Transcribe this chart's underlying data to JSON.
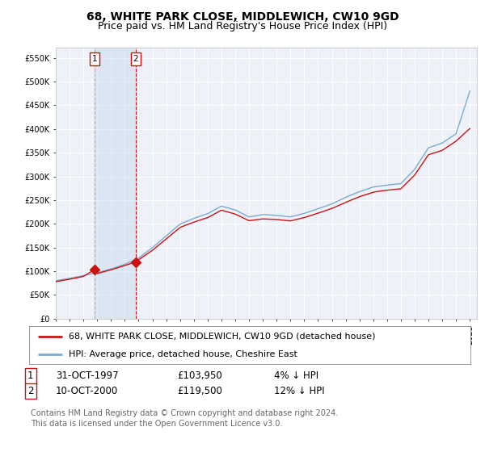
{
  "title": "68, WHITE PARK CLOSE, MIDDLEWICH, CW10 9GD",
  "subtitle": "Price paid vs. HM Land Registry's House Price Index (HPI)",
  "ylim": [
    0,
    572000
  ],
  "yticks": [
    0,
    50000,
    100000,
    150000,
    200000,
    250000,
    300000,
    350000,
    400000,
    450000,
    500000,
    550000
  ],
  "ytick_labels": [
    "£0",
    "£50K",
    "£100K",
    "£150K",
    "£200K",
    "£250K",
    "£300K",
    "£350K",
    "£400K",
    "£450K",
    "£500K",
    "£550K"
  ],
  "background_color": "#ffffff",
  "plot_background": "#eef2f8",
  "grid_color": "#ffffff",
  "red_line_color": "#cc1111",
  "blue_line_color": "#7aaad0",
  "purchase1_x": 1997.83,
  "purchase1_price": 103950,
  "purchase2_x": 2000.78,
  "purchase2_price": 119500,
  "xmin": 1995.0,
  "xmax": 2025.5,
  "legend_label_red": "68, WHITE PARK CLOSE, MIDDLEWICH, CW10 9GD (detached house)",
  "legend_label_blue": "HPI: Average price, detached house, Cheshire East",
  "table_row1": [
    "1",
    "31-OCT-1997",
    "£103,950",
    "4% ↓ HPI"
  ],
  "table_row2": [
    "2",
    "10-OCT-2000",
    "£119,500",
    "12% ↓ HPI"
  ],
  "footnote1": "Contains HM Land Registry data © Crown copyright and database right 2024.",
  "footnote2": "This data is licensed under the Open Government Licence v3.0.",
  "title_fontsize": 10,
  "subtitle_fontsize": 9,
  "tick_fontsize": 7,
  "legend_fontsize": 8,
  "table_fontsize": 8.5,
  "footnote_fontsize": 7
}
